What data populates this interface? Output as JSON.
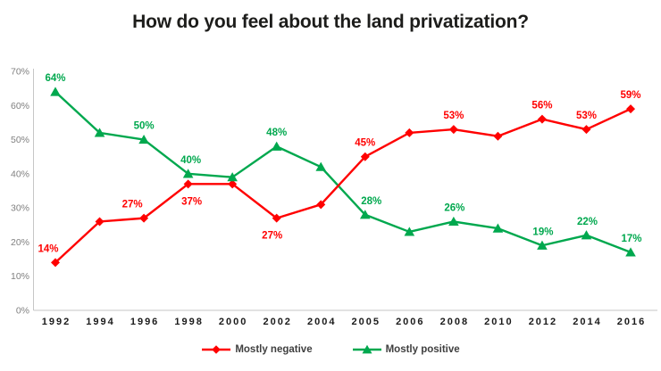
{
  "chart_data": {
    "type": "line",
    "title": "How do you feel about the land privatization?",
    "categories": [
      "1992",
      "1994",
      "1996",
      "1998",
      "2000",
      "2002",
      "2004",
      "2005",
      "2006",
      "2008",
      "2010",
      "2012",
      "2014",
      "2016"
    ],
    "y_axis": {
      "min": 0,
      "max": 70,
      "step": 10,
      "tick_labels": [
        "0%",
        "10%",
        "20%",
        "30%",
        "40%",
        "50%",
        "60%",
        "70%"
      ]
    },
    "grid": "off",
    "legend_position": "bottom",
    "series": [
      {
        "name": "Mostly negative",
        "color": "#FF0000",
        "marker": "diamond",
        "values": [
          14,
          26,
          27,
          37,
          37,
          27,
          31,
          45,
          52,
          53,
          51,
          56,
          53,
          59
        ],
        "point_labels": [
          {
            "index": 0,
            "text": "14%",
            "position": "above",
            "dx": -8
          },
          {
            "index": 2,
            "text": "27%",
            "position": "above",
            "dx": -13
          },
          {
            "index": 3,
            "text": "37%",
            "position": "below",
            "dx": 4
          },
          {
            "index": 5,
            "text": "27%",
            "position": "below",
            "dx": -5
          },
          {
            "index": 7,
            "text": "45%",
            "position": "above",
            "dx": 0
          },
          {
            "index": 9,
            "text": "53%",
            "position": "above",
            "dx": 0
          },
          {
            "index": 11,
            "text": "56%",
            "position": "above",
            "dx": 0
          },
          {
            "index": 12,
            "text": "53%",
            "position": "above",
            "dx": 0
          },
          {
            "index": 13,
            "text": "59%",
            "position": "above",
            "dx": 0
          }
        ]
      },
      {
        "name": "Mostly positive",
        "color": "#00A84E",
        "marker": "triangle",
        "values": [
          64,
          52,
          50,
          40,
          39,
          48,
          42,
          28,
          23,
          26,
          24,
          19,
          22,
          17
        ],
        "point_labels": [
          {
            "index": 0,
            "text": "64%",
            "position": "above",
            "dx": 0
          },
          {
            "index": 2,
            "text": "50%",
            "position": "above",
            "dx": 0
          },
          {
            "index": 3,
            "text": "40%",
            "position": "above",
            "dx": 3
          },
          {
            "index": 5,
            "text": "48%",
            "position": "above",
            "dx": 0
          },
          {
            "index": 7,
            "text": "28%",
            "position": "above",
            "dx": 7
          },
          {
            "index": 9,
            "text": "26%",
            "position": "above",
            "dx": 1
          },
          {
            "index": 11,
            "text": "19%",
            "position": "above",
            "dx": 1
          },
          {
            "index": 12,
            "text": "22%",
            "position": "above",
            "dx": 1
          },
          {
            "index": 13,
            "text": "17%",
            "position": "above",
            "dx": 1
          }
        ]
      }
    ],
    "colors": {
      "axis_line": "#C6C6C6",
      "y_tick_label": "#808080",
      "x_tick_label": "#1a1a1a",
      "title": "#1d1d1b",
      "legend_text": "#3f3f3f"
    }
  }
}
